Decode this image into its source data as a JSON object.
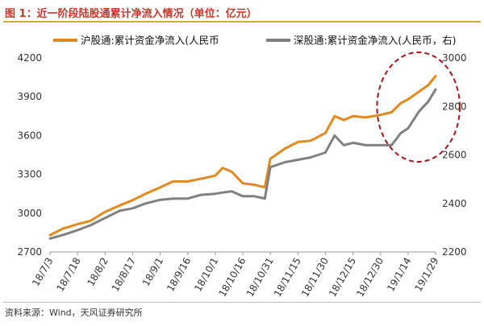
{
  "figure": {
    "title": "图 1：近一阶段陆股通累计净流入情况（单位：亿元）",
    "source": "资料来源：Wind，天风证券研究所"
  },
  "chart_data": {
    "type": "line",
    "x_ticks": [
      "18/7/3",
      "18/7/18",
      "18/8/2",
      "18/8/17",
      "18/9/1",
      "18/9/16",
      "18/10/1",
      "18/10/16",
      "18/10/31",
      "18/11/15",
      "18/11/30",
      "18/12/15",
      "18/12/30",
      "19/1/14",
      "19/1/29"
    ],
    "yleft": {
      "ticks": [
        "2700",
        "3000",
        "3300",
        "3600",
        "3900",
        "4200"
      ],
      "ylim": [
        2700,
        4200
      ]
    },
    "yright": {
      "ticks": [
        "2200",
        "2400",
        "2600",
        "2800",
        "3000"
      ],
      "ylim": [
        2200,
        3000
      ]
    },
    "series": [
      {
        "name": "沪股通:累计资金净流入(人民币",
        "axis": "left",
        "color": "#E38A1E",
        "points": [
          [
            "18/7/3",
            2830
          ],
          [
            "18/7/10",
            2880
          ],
          [
            "18/7/18",
            2915
          ],
          [
            "18/7/25",
            2940
          ],
          [
            "18/8/2",
            3010
          ],
          [
            "18/8/10",
            3060
          ],
          [
            "18/8/17",
            3100
          ],
          [
            "18/8/24",
            3150
          ],
          [
            "18/9/1",
            3200
          ],
          [
            "18/9/8",
            3245
          ],
          [
            "18/9/16",
            3245
          ],
          [
            "18/9/23",
            3265
          ],
          [
            "18/10/1",
            3290
          ],
          [
            "18/10/5",
            3350
          ],
          [
            "18/10/10",
            3320
          ],
          [
            "18/10/16",
            3230
          ],
          [
            "18/10/22",
            3220
          ],
          [
            "18/10/28",
            3200
          ],
          [
            "18/10/31",
            3420
          ],
          [
            "18/11/8",
            3500
          ],
          [
            "18/11/15",
            3550
          ],
          [
            "18/11/22",
            3560
          ],
          [
            "18/11/30",
            3620
          ],
          [
            "18/12/5",
            3750
          ],
          [
            "18/12/10",
            3720
          ],
          [
            "18/12/15",
            3750
          ],
          [
            "18/12/22",
            3740
          ],
          [
            "18/12/30",
            3760
          ],
          [
            "19/1/5",
            3780
          ],
          [
            "19/1/10",
            3850
          ],
          [
            "19/1/14",
            3880
          ],
          [
            "19/1/20",
            3940
          ],
          [
            "19/1/25",
            3990
          ],
          [
            "19/1/29",
            4060
          ]
        ]
      },
      {
        "name": "深股通:累计资金净流入(人民币，右)",
        "axis": "right",
        "color": "#808080",
        "points": [
          [
            "18/7/3",
            2255
          ],
          [
            "18/7/10",
            2270
          ],
          [
            "18/7/18",
            2290
          ],
          [
            "18/7/25",
            2310
          ],
          [
            "18/8/2",
            2340
          ],
          [
            "18/8/10",
            2370
          ],
          [
            "18/8/17",
            2380
          ],
          [
            "18/8/24",
            2400
          ],
          [
            "18/9/1",
            2415
          ],
          [
            "18/9/8",
            2420
          ],
          [
            "18/9/16",
            2420
          ],
          [
            "18/9/23",
            2435
          ],
          [
            "18/10/1",
            2440
          ],
          [
            "18/10/5",
            2445
          ],
          [
            "18/10/10",
            2450
          ],
          [
            "18/10/16",
            2430
          ],
          [
            "18/10/22",
            2430
          ],
          [
            "18/10/28",
            2420
          ],
          [
            "18/10/31",
            2550
          ],
          [
            "18/11/8",
            2570
          ],
          [
            "18/11/15",
            2580
          ],
          [
            "18/11/22",
            2590
          ],
          [
            "18/11/30",
            2610
          ],
          [
            "18/12/5",
            2680
          ],
          [
            "18/12/10",
            2640
          ],
          [
            "18/12/15",
            2650
          ],
          [
            "18/12/22",
            2640
          ],
          [
            "18/12/30",
            2640
          ],
          [
            "19/1/5",
            2640
          ],
          [
            "19/1/10",
            2690
          ],
          [
            "19/1/14",
            2710
          ],
          [
            "19/1/20",
            2780
          ],
          [
            "19/1/25",
            2820
          ],
          [
            "19/1/29",
            2870
          ]
        ]
      }
    ],
    "annotation": {
      "shape": "dashed-ellipse",
      "color": "#A0151B",
      "x_from": "19/1/5",
      "x_to": "19/1/29"
    },
    "grid": false,
    "legend_position": "top"
  }
}
